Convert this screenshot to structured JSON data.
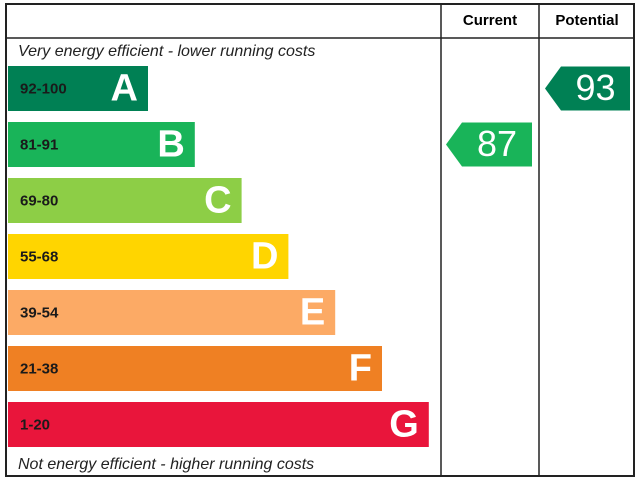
{
  "header": {
    "current": "Current",
    "potential": "Potential"
  },
  "top_note": "Very energy efficient - lower running costs",
  "bottom_note": "Not energy efficient - higher running costs",
  "bands": [
    {
      "range": "92-100",
      "letter": "A",
      "color": "#008054"
    },
    {
      "range": "81-91",
      "letter": "B",
      "color": "#19b459"
    },
    {
      "range": "69-80",
      "letter": "C",
      "color": "#8dce46"
    },
    {
      "range": "55-68",
      "letter": "D",
      "color": "#ffd500"
    },
    {
      "range": "39-54",
      "letter": "E",
      "color": "#fcaa65"
    },
    {
      "range": "21-38",
      "letter": "F",
      "color": "#ef8023"
    },
    {
      "range": "1-20",
      "letter": "G",
      "color": "#e9153b"
    }
  ],
  "current": {
    "value": 87
  },
  "potential": {
    "value": 93
  }
}
